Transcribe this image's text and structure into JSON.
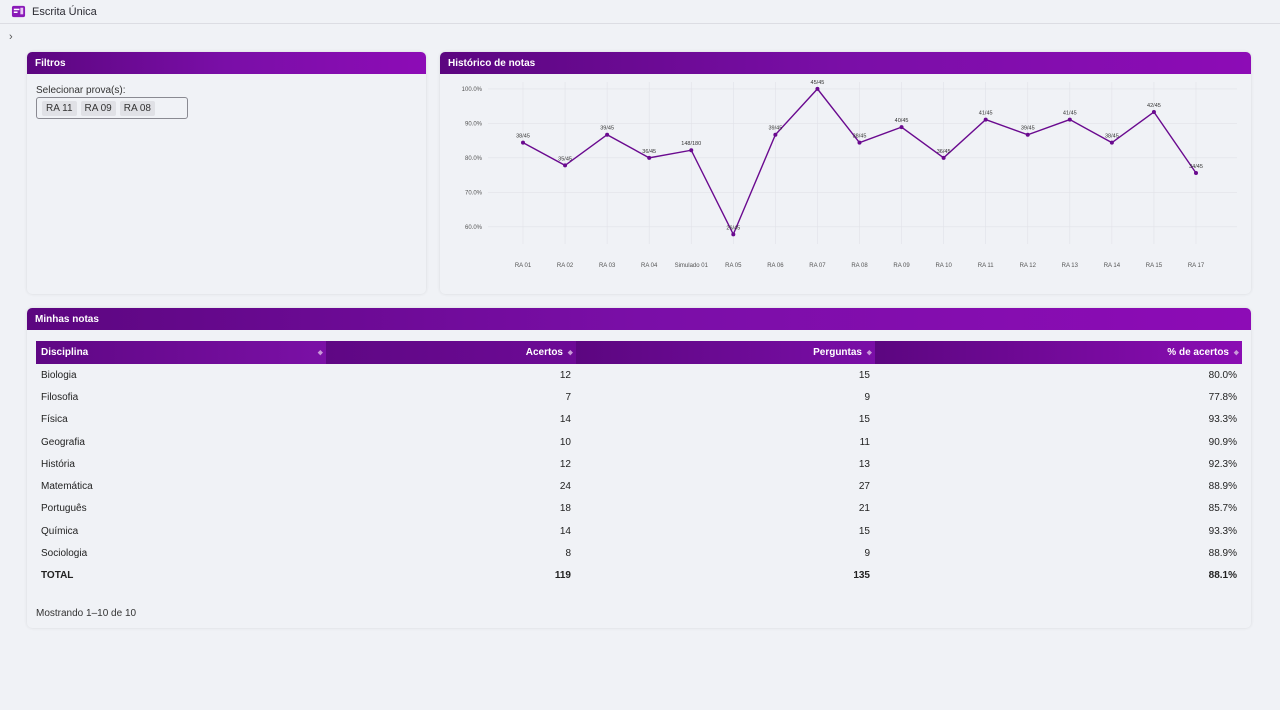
{
  "app": {
    "title": "Escrita Única"
  },
  "filters": {
    "header": "Filtros",
    "label": "Selecionar prova(s):",
    "selected": [
      "RA 11",
      "RA 09",
      "RA 08"
    ]
  },
  "history": {
    "header": "Histórico de notas"
  },
  "chart_data": {
    "type": "line",
    "categories": [
      "RA 01",
      "RA 02",
      "RA 03",
      "RA 04",
      "Simulado 01",
      "RA 05",
      "RA 06",
      "RA 07",
      "RA 08",
      "RA 09",
      "RA 10",
      "RA 11",
      "RA 12",
      "RA 13",
      "RA 14",
      "RA 15",
      "RA 17"
    ],
    "values": [
      84.4,
      77.8,
      86.7,
      80.0,
      82.2,
      57.8,
      86.7,
      100.0,
      84.4,
      88.9,
      80.0,
      91.1,
      86.7,
      91.1,
      84.4,
      93.3,
      75.6
    ],
    "point_labels": [
      "38/45",
      "35/45",
      "39/45",
      "36/45",
      "148/180",
      "26/45",
      "39/45",
      "45/45",
      "38/45",
      "40/45",
      "36/45",
      "41/45",
      "39/45",
      "41/45",
      "38/45",
      "42/45",
      "34/45"
    ],
    "y_ticks": [
      "60.0%",
      "70.0%",
      "80.0%",
      "90.0%",
      "100.0%"
    ],
    "ylim": [
      55,
      102
    ],
    "grid": true,
    "color": "#6a0a8f"
  },
  "grades": {
    "header": "Minhas notas",
    "columns": [
      "Disciplina",
      "Acertos",
      "Perguntas",
      "% de acertos"
    ],
    "rows": [
      [
        "Biologia",
        "12",
        "15",
        "80.0%"
      ],
      [
        "Filosofia",
        "7",
        "9",
        "77.8%"
      ],
      [
        "Física",
        "14",
        "15",
        "93.3%"
      ],
      [
        "Geografia",
        "10",
        "11",
        "90.9%"
      ],
      [
        "História",
        "12",
        "13",
        "92.3%"
      ],
      [
        "Matemática",
        "24",
        "27",
        "88.9%"
      ],
      [
        "Português",
        "18",
        "21",
        "85.7%"
      ],
      [
        "Química",
        "14",
        "15",
        "93.3%"
      ],
      [
        "Sociologia",
        "8",
        "9",
        "88.9%"
      ]
    ],
    "total": [
      "TOTAL",
      "119",
      "135",
      "88.1%"
    ],
    "showing": "Mostrando 1–10 de 10"
  }
}
